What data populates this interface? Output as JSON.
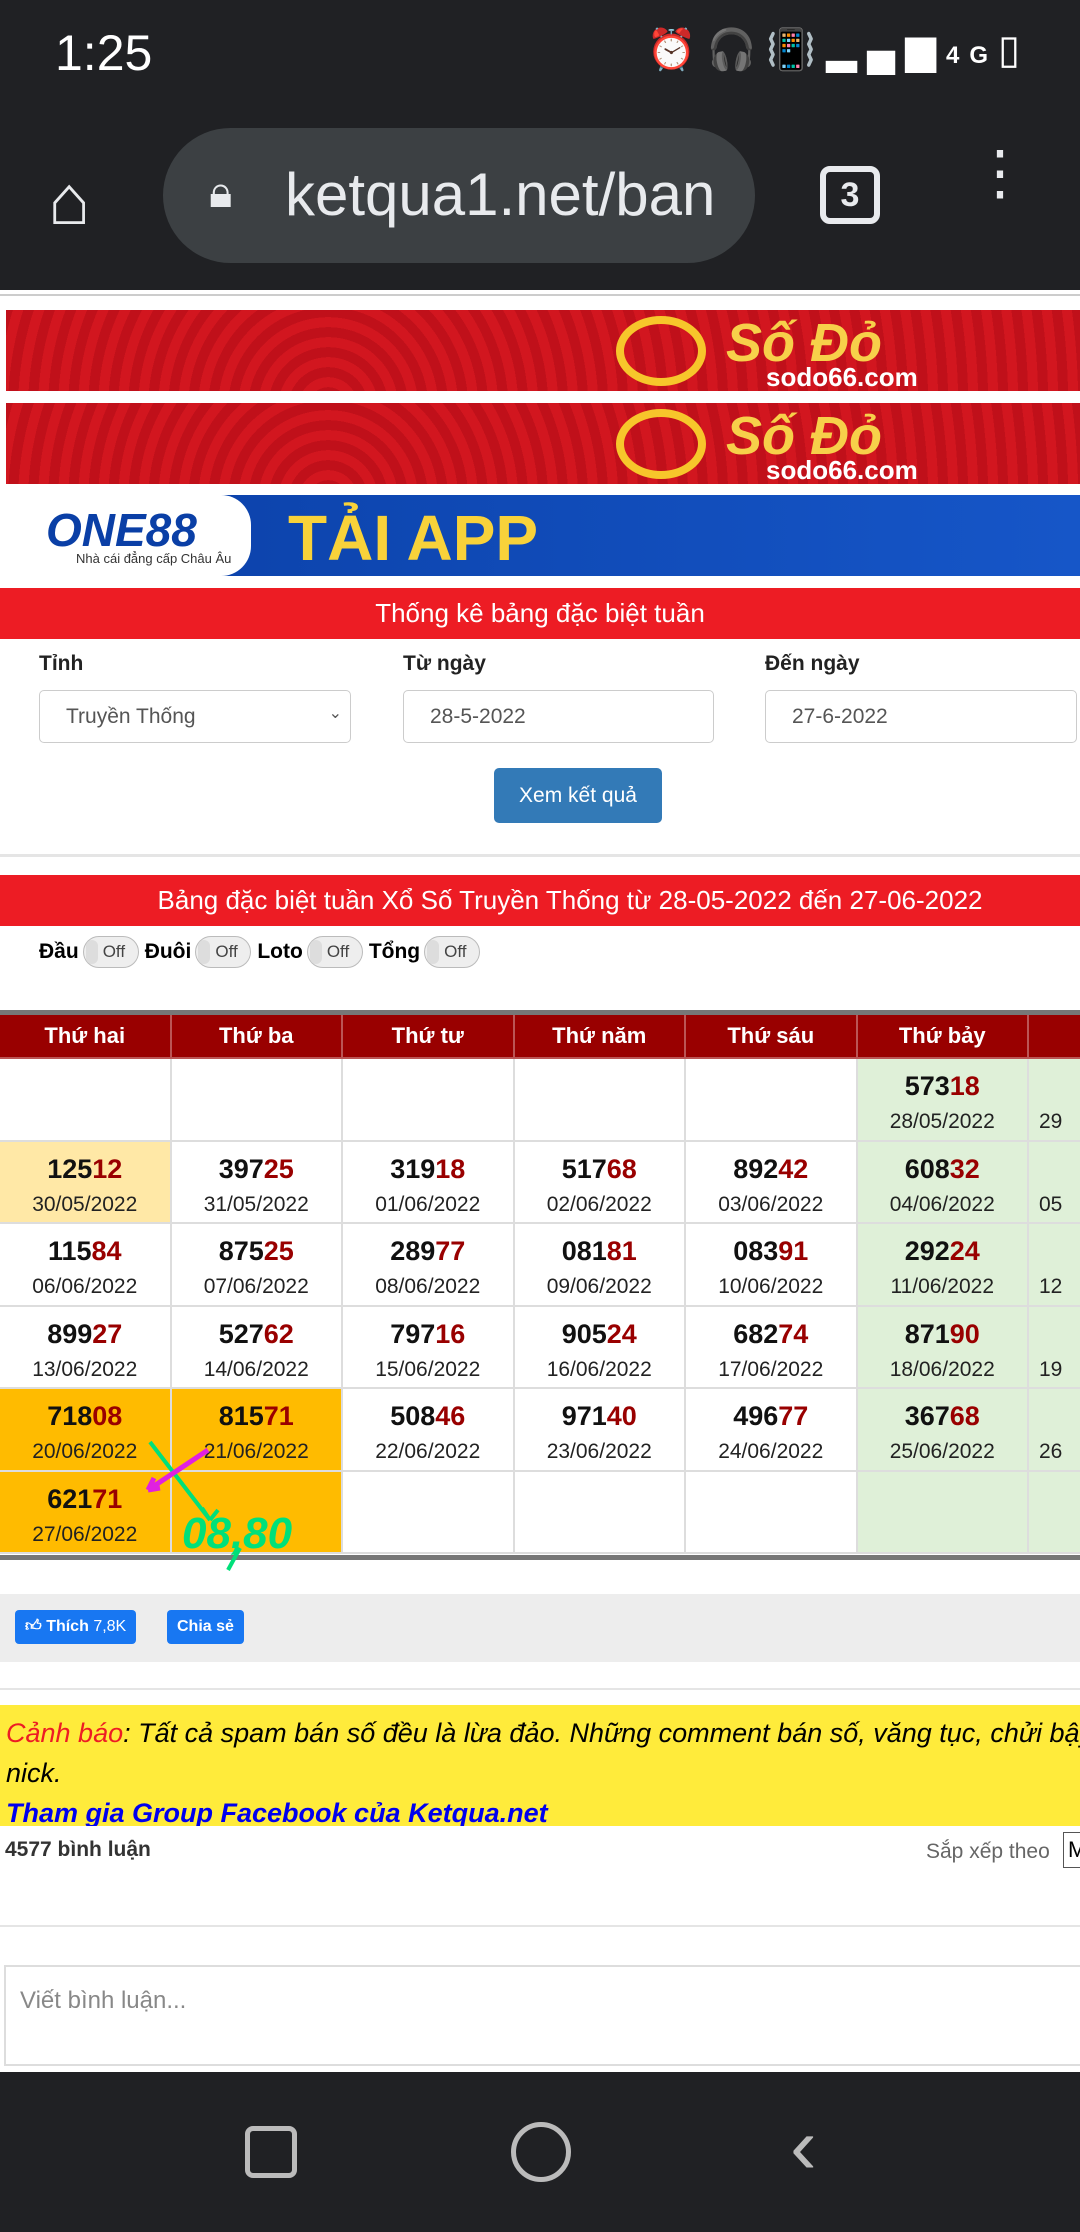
{
  "status": {
    "time": "1:25",
    "icons": [
      "alarm-icon",
      "headphones-icon",
      "vibrate-icon",
      "signal-icon",
      "4g-icon",
      "battery-icon"
    ],
    "network": "4G"
  },
  "browser": {
    "url": "ketqua1.net/ban",
    "tab_count": "3"
  },
  "banners": [
    {
      "brand": "Số Đỏ",
      "sub": "sodo66.com",
      "tag": "casino"
    },
    {
      "brand": "Số Đỏ",
      "sub": "sodo66.com",
      "tag": "casino"
    },
    {
      "brand": "ONE88",
      "sub": "Nhà cái đẳng cấp Châu Âu",
      "cta": "TẢI APP"
    }
  ],
  "form": {
    "title": "Thống kê bảng đặc biệt tuần",
    "province_label": "Tỉnh",
    "province_value": "Truyền Thống",
    "from_label": "Từ ngày",
    "from_value": "28-5-2022",
    "to_label": "Đến ngày",
    "to_value": "27-6-2022",
    "submit": "Xem kết quả"
  },
  "results": {
    "title": "Bảng đặc biệt tuần Xổ Số Truyền Thống từ 28-05-2022 đến 27-06-2022",
    "toggles": [
      {
        "label": "Đầu",
        "state": "Off"
      },
      {
        "label": "Đuôi",
        "state": "Off"
      },
      {
        "label": "Loto",
        "state": "Off"
      },
      {
        "label": "Tổng",
        "state": "Off"
      }
    ],
    "headers": [
      "Thứ hai",
      "Thứ ba",
      "Thứ tư",
      "Thứ năm",
      "Thứ sáu",
      "Thứ bảy",
      "C"
    ],
    "rows": [
      [
        null,
        null,
        null,
        null,
        null,
        {
          "head": "573",
          "tail": "18",
          "date": "28/05/2022"
        },
        {
          "date": "29"
        }
      ],
      [
        {
          "head": "125",
          "tail": "12",
          "date": "30/05/2022"
        },
        {
          "head": "397",
          "tail": "25",
          "date": "31/05/2022"
        },
        {
          "head": "319",
          "tail": "18",
          "date": "01/06/2022"
        },
        {
          "head": "517",
          "tail": "68",
          "date": "02/06/2022"
        },
        {
          "head": "892",
          "tail": "42",
          "date": "03/06/2022"
        },
        {
          "head": "608",
          "tail": "32",
          "date": "04/06/2022"
        },
        {
          "date": "05"
        }
      ],
      [
        {
          "head": "115",
          "tail": "84",
          "date": "06/06/2022"
        },
        {
          "head": "875",
          "tail": "25",
          "date": "07/06/2022"
        },
        {
          "head": "289",
          "tail": "77",
          "date": "08/06/2022"
        },
        {
          "head": "081",
          "tail": "81",
          "date": "09/06/2022"
        },
        {
          "head": "083",
          "tail": "91",
          "date": "10/06/2022"
        },
        {
          "head": "292",
          "tail": "24",
          "date": "11/06/2022"
        },
        {
          "date": "12"
        }
      ],
      [
        {
          "head": "899",
          "tail": "27",
          "date": "13/06/2022"
        },
        {
          "head": "527",
          "tail": "62",
          "date": "14/06/2022"
        },
        {
          "head": "797",
          "tail": "16",
          "date": "15/06/2022"
        },
        {
          "head": "905",
          "tail": "24",
          "date": "16/06/2022"
        },
        {
          "head": "682",
          "tail": "74",
          "date": "17/06/2022"
        },
        {
          "head": "871",
          "tail": "90",
          "date": "18/06/2022"
        },
        {
          "date": "19"
        }
      ],
      [
        {
          "head": "718",
          "tail": "08",
          "date": "20/06/2022"
        },
        {
          "head": "815",
          "tail": "71",
          "date": "21/06/2022"
        },
        {
          "head": "508",
          "tail": "46",
          "date": "22/06/2022"
        },
        {
          "head": "971",
          "tail": "40",
          "date": "23/06/2022"
        },
        {
          "head": "496",
          "tail": "77",
          "date": "24/06/2022"
        },
        {
          "head": "367",
          "tail": "68",
          "date": "25/06/2022"
        },
        {
          "date": "26"
        }
      ],
      [
        {
          "head": "621",
          "tail": "71",
          "date": "27/06/2022"
        },
        null,
        null,
        null,
        null,
        null,
        null
      ]
    ],
    "annotation": "08,80",
    "colors": {
      "header": "#990000",
      "tail": "#990000",
      "saturday": "#dff0d8",
      "highlight": "#ffbb00",
      "annotation_green": "#00e07a",
      "annotation_pink": "#e020e0"
    }
  },
  "social": {
    "like": "Thích",
    "like_count": "7,8K",
    "share": "Chia sẻ"
  },
  "warning": {
    "label": "Cảnh báo",
    "text": ": Tất cả spam bán số đều là lừa đảo. Những comment bán số, văng tục, chửi bậy",
    "text2": "nick.",
    "link": "Tham gia Group Facebook của Ketqua.net"
  },
  "comments": {
    "count": "4577 bình luận",
    "sort_label": "Sắp xếp theo",
    "sort_value": "M",
    "placeholder": "Viết bình luận..."
  }
}
